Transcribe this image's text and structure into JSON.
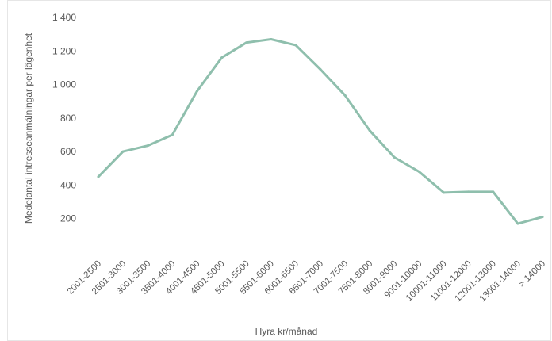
{
  "chart_data": {
    "type": "line",
    "title": "",
    "xlabel": "Hyra kr/månad",
    "ylabel": "Medelantal intresseanmälningar per lägenhet",
    "categories": [
      "2001-2500",
      "2501-3000",
      "3001-3500",
      "3501-4000",
      "4001-4500",
      "4501-5000",
      "5001-5500",
      "5501-6000",
      "6001-6500",
      "6501-7000",
      "7001-7500",
      "7501-8000",
      "8001-9000",
      "9001-10000",
      "10001-11000",
      "11001-12000",
      "12001-13000",
      "13001-14000",
      "> 14000"
    ],
    "series": [
      {
        "values": [
          450,
          600,
          635,
          700,
          960,
          1160,
          1250,
          1270,
          1235,
          1090,
          935,
          725,
          565,
          480,
          355,
          360,
          360,
          170,
          210
        ]
      }
    ],
    "ylim": [
      0,
      1400
    ],
    "yticks": [
      200,
      400,
      600,
      800,
      1000,
      1200,
      1400
    ],
    "ytick_labels": [
      "200",
      "400",
      "600",
      "800",
      "1 000",
      "1 200",
      "1 400"
    ],
    "grid": false,
    "legend": "none",
    "colors": {
      "line": "#8fbfad",
      "text": "#595959",
      "border": "#e3e3e3"
    }
  }
}
